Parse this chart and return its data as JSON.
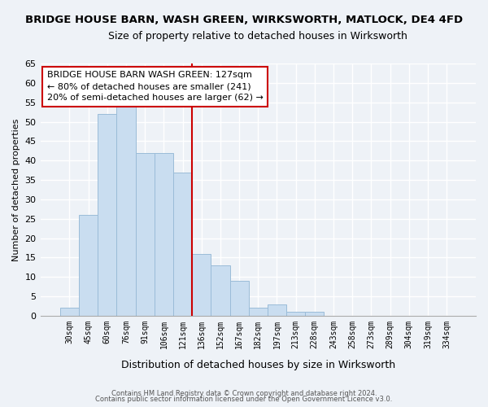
{
  "title": "BRIDGE HOUSE BARN, WASH GREEN, WIRKSWORTH, MATLOCK, DE4 4FD",
  "subtitle": "Size of property relative to detached houses in Wirksworth",
  "xlabel": "Distribution of detached houses by size in Wirksworth",
  "ylabel": "Number of detached properties",
  "bar_labels": [
    "30sqm",
    "45sqm",
    "60sqm",
    "76sqm",
    "91sqm",
    "106sqm",
    "121sqm",
    "136sqm",
    "152sqm",
    "167sqm",
    "182sqm",
    "197sqm",
    "213sqm",
    "228sqm",
    "243sqm",
    "258sqm",
    "273sqm",
    "289sqm",
    "304sqm",
    "319sqm",
    "334sqm"
  ],
  "bar_values": [
    2,
    26,
    52,
    54,
    42,
    42,
    37,
    16,
    13,
    9,
    2,
    3,
    1,
    1,
    0,
    0,
    0,
    0,
    0,
    0,
    0
  ],
  "bar_color": "#c9ddf0",
  "bar_edge_color": "#9bbcd8",
  "ylim": [
    0,
    65
  ],
  "yticks": [
    0,
    5,
    10,
    15,
    20,
    25,
    30,
    35,
    40,
    45,
    50,
    55,
    60,
    65
  ],
  "vline_color": "#cc0000",
  "annotation_text": "BRIDGE HOUSE BARN WASH GREEN: 127sqm\n← 80% of detached houses are smaller (241)\n20% of semi-detached houses are larger (62) →",
  "annotation_box_color": "#ffffff",
  "annotation_box_edge": "#cc0000",
  "footer1": "Contains HM Land Registry data © Crown copyright and database right 2024.",
  "footer2": "Contains public sector information licensed under the Open Government Licence v3.0.",
  "background_color": "#eef2f7",
  "plot_bg_color": "#eef2f7",
  "grid_color": "#ffffff",
  "spine_color": "#aaaaaa"
}
